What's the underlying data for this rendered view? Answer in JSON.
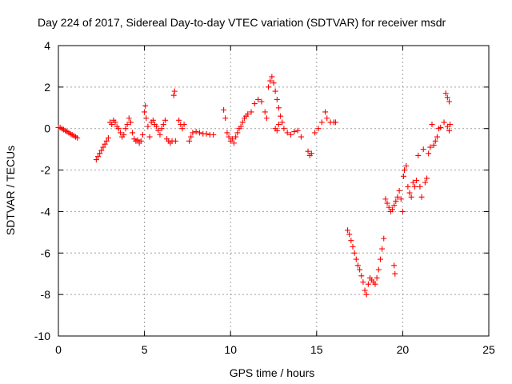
{
  "chart_data": {
    "type": "scatter",
    "title": "Day 224 of 2017, Sidereal Day-to-day VTEC variation (SDTVAR) for receiver msdr",
    "xlabel": "GPS time / hours",
    "ylabel": "SDTVAR / TECUs",
    "xlim": [
      0,
      25
    ],
    "ylim": [
      -10,
      4
    ],
    "xticks": [
      0,
      5,
      10,
      15,
      20,
      25
    ],
    "xtick_labels": [
      "0",
      "5",
      "10",
      "15",
      "20",
      "25"
    ],
    "yticks": [
      -10,
      -8,
      -6,
      -4,
      -2,
      0,
      2,
      4
    ],
    "ytick_labels": [
      "-10",
      "-8",
      "-6",
      "-4",
      "-2",
      "0",
      "2",
      "4"
    ],
    "grid": true,
    "marker": "+",
    "color": "#ff0000",
    "series": [
      {
        "name": "SDTVAR",
        "points": [
          [
            0.0,
            0.05
          ],
          [
            0.1,
            0.05
          ],
          [
            0.2,
            0.0
          ],
          [
            0.3,
            -0.05
          ],
          [
            0.4,
            -0.1
          ],
          [
            0.5,
            -0.15
          ],
          [
            0.6,
            -0.2
          ],
          [
            0.7,
            -0.25
          ],
          [
            0.8,
            -0.3
          ],
          [
            0.9,
            -0.35
          ],
          [
            1.0,
            -0.4
          ],
          [
            1.1,
            -0.45
          ],
          [
            2.2,
            -1.5
          ],
          [
            2.3,
            -1.35
          ],
          [
            2.4,
            -1.2
          ],
          [
            2.5,
            -1.05
          ],
          [
            2.6,
            -0.9
          ],
          [
            2.7,
            -0.75
          ],
          [
            2.8,
            -0.6
          ],
          [
            2.9,
            -0.45
          ],
          [
            3.0,
            0.3
          ],
          [
            3.1,
            0.2
          ],
          [
            3.2,
            0.4
          ],
          [
            3.3,
            0.3
          ],
          [
            3.4,
            0.1
          ],
          [
            3.5,
            0.0
          ],
          [
            3.6,
            -0.2
          ],
          [
            3.7,
            -0.4
          ],
          [
            3.8,
            -0.3
          ],
          [
            3.9,
            0.0
          ],
          [
            4.0,
            0.2
          ],
          [
            4.1,
            0.5
          ],
          [
            4.2,
            0.3
          ],
          [
            4.3,
            -0.2
          ],
          [
            4.4,
            -0.5
          ],
          [
            4.5,
            -0.6
          ],
          [
            4.6,
            -0.55
          ],
          [
            4.7,
            -0.7
          ],
          [
            4.8,
            -0.6
          ],
          [
            4.9,
            -0.3
          ],
          [
            5.0,
            0.8
          ],
          [
            5.05,
            1.1
          ],
          [
            5.1,
            0.5
          ],
          [
            5.2,
            0.1
          ],
          [
            5.3,
            -0.4
          ],
          [
            5.4,
            0.3
          ],
          [
            5.5,
            0.4
          ],
          [
            5.6,
            0.2
          ],
          [
            5.7,
            0.1
          ],
          [
            5.8,
            -0.1
          ],
          [
            5.9,
            -0.3
          ],
          [
            6.0,
            0.0
          ],
          [
            6.1,
            0.2
          ],
          [
            6.2,
            0.4
          ],
          [
            6.3,
            -0.5
          ],
          [
            6.4,
            -0.6
          ],
          [
            6.5,
            -0.7
          ],
          [
            6.6,
            -0.6
          ],
          [
            6.7,
            1.6
          ],
          [
            6.75,
            1.8
          ],
          [
            6.8,
            -0.6
          ],
          [
            7.0,
            0.4
          ],
          [
            7.1,
            0.2
          ],
          [
            7.2,
            0.0
          ],
          [
            7.3,
            0.2
          ],
          [
            7.6,
            -0.6
          ],
          [
            7.7,
            -0.4
          ],
          [
            7.8,
            -0.2
          ],
          [
            8.0,
            -0.15
          ],
          [
            8.2,
            -0.2
          ],
          [
            8.4,
            -0.25
          ],
          [
            8.6,
            -0.25
          ],
          [
            8.8,
            -0.3
          ],
          [
            9.0,
            -0.3
          ],
          [
            9.6,
            0.9
          ],
          [
            9.7,
            0.5
          ],
          [
            9.8,
            -0.2
          ],
          [
            9.9,
            -0.4
          ],
          [
            10.0,
            -0.6
          ],
          [
            10.1,
            -0.5
          ],
          [
            10.2,
            -0.7
          ],
          [
            10.3,
            -0.4
          ],
          [
            10.4,
            -0.2
          ],
          [
            10.5,
            0.0
          ],
          [
            10.6,
            0.1
          ],
          [
            10.7,
            0.3
          ],
          [
            10.8,
            0.5
          ],
          [
            10.9,
            0.6
          ],
          [
            11.0,
            0.7
          ],
          [
            11.2,
            0.8
          ],
          [
            11.4,
            1.2
          ],
          [
            11.6,
            1.4
          ],
          [
            11.8,
            1.3
          ],
          [
            12.0,
            0.8
          ],
          [
            12.1,
            0.5
          ],
          [
            12.2,
            2.0
          ],
          [
            12.3,
            2.3
          ],
          [
            12.4,
            2.5
          ],
          [
            12.5,
            2.2
          ],
          [
            12.6,
            1.8
          ],
          [
            12.7,
            1.4
          ],
          [
            12.8,
            1.0
          ],
          [
            12.9,
            0.6
          ],
          [
            13.0,
            0.3
          ],
          [
            12.6,
            0.0
          ],
          [
            12.7,
            -0.1
          ],
          [
            12.8,
            0.2
          ],
          [
            13.1,
            0.0
          ],
          [
            13.3,
            -0.2
          ],
          [
            13.5,
            -0.3
          ],
          [
            13.7,
            -0.15
          ],
          [
            13.9,
            -0.1
          ],
          [
            14.1,
            -0.4
          ],
          [
            14.5,
            -1.1
          ],
          [
            14.6,
            -1.3
          ],
          [
            14.7,
            -1.2
          ],
          [
            14.9,
            -0.2
          ],
          [
            15.1,
            0.0
          ],
          [
            15.3,
            0.3
          ],
          [
            15.5,
            0.8
          ],
          [
            15.6,
            0.5
          ],
          [
            15.8,
            0.3
          ],
          [
            16.0,
            0.3
          ],
          [
            16.1,
            0.3
          ],
          [
            16.8,
            -4.9
          ],
          [
            16.9,
            -5.1
          ],
          [
            17.0,
            -5.4
          ],
          [
            17.1,
            -5.7
          ],
          [
            17.2,
            -6.0
          ],
          [
            17.3,
            -6.3
          ],
          [
            17.4,
            -6.6
          ],
          [
            17.5,
            -6.8
          ],
          [
            17.6,
            -7.1
          ],
          [
            17.7,
            -7.4
          ],
          [
            17.8,
            -7.8
          ],
          [
            17.9,
            -8.0
          ],
          [
            18.0,
            -7.5
          ],
          [
            18.1,
            -7.2
          ],
          [
            18.2,
            -7.3
          ],
          [
            18.3,
            -7.4
          ],
          [
            18.4,
            -7.5
          ],
          [
            18.5,
            -7.2
          ],
          [
            18.6,
            -6.8
          ],
          [
            18.7,
            -6.3
          ],
          [
            18.8,
            -5.8
          ],
          [
            18.9,
            -5.3
          ],
          [
            19.0,
            -3.4
          ],
          [
            19.1,
            -3.6
          ],
          [
            19.2,
            -3.8
          ],
          [
            19.3,
            -4.0
          ],
          [
            19.4,
            -3.9
          ],
          [
            19.5,
            -3.7
          ],
          [
            19.5,
            -6.6
          ],
          [
            19.55,
            -7.0
          ],
          [
            19.6,
            -3.5
          ],
          [
            19.7,
            -3.3
          ],
          [
            19.8,
            -3.0
          ],
          [
            19.9,
            -3.4
          ],
          [
            20.0,
            -4.0
          ],
          [
            20.05,
            -2.3
          ],
          [
            20.1,
            -2.0
          ],
          [
            20.2,
            -1.8
          ],
          [
            20.3,
            -2.8
          ],
          [
            20.4,
            -3.1
          ],
          [
            20.5,
            -3.3
          ],
          [
            20.6,
            -2.6
          ],
          [
            20.7,
            -2.8
          ],
          [
            20.8,
            -2.5
          ],
          [
            20.9,
            -1.3
          ],
          [
            21.0,
            -2.8
          ],
          [
            21.1,
            -3.3
          ],
          [
            21.2,
            -1.0
          ],
          [
            21.3,
            -2.6
          ],
          [
            21.4,
            -2.4
          ],
          [
            21.5,
            -1.2
          ],
          [
            21.6,
            -0.9
          ],
          [
            21.7,
            0.2
          ],
          [
            21.8,
            -0.8
          ],
          [
            21.9,
            -0.6
          ],
          [
            22.0,
            -0.4
          ],
          [
            22.1,
            0.0
          ],
          [
            22.2,
            0.05
          ],
          [
            22.4,
            0.3
          ],
          [
            22.5,
            1.7
          ],
          [
            22.6,
            1.5
          ],
          [
            22.7,
            1.3
          ],
          [
            22.6,
            0.1
          ],
          [
            22.7,
            -0.1
          ],
          [
            22.75,
            0.2
          ]
        ]
      }
    ]
  }
}
